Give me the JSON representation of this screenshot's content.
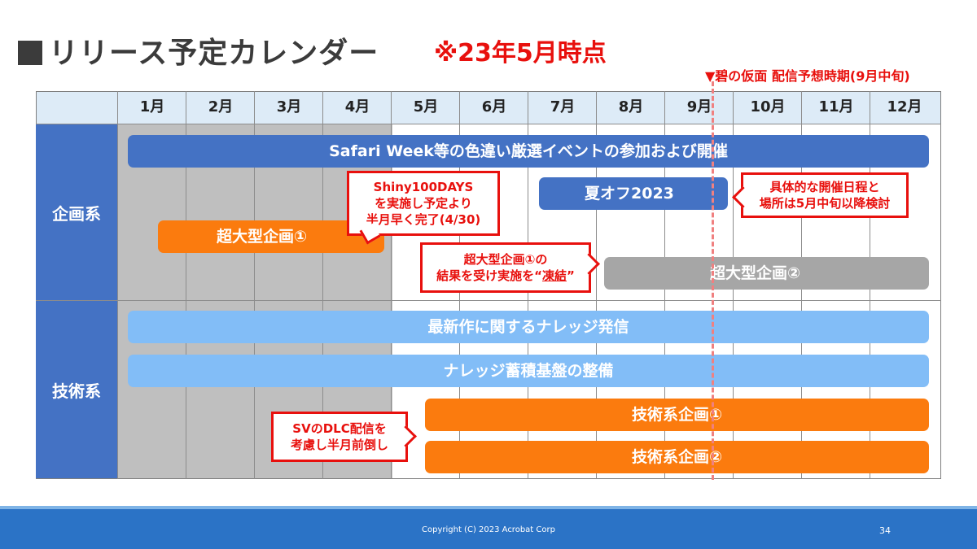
{
  "title": "■リリース予定カレンダー",
  "title_text": "リリース予定カレンダー",
  "as_of": "※23年5月時点",
  "marker_label": "▼碧の仮面 配信予想時期(9月中旬)",
  "months": [
    "1月",
    "2月",
    "3月",
    "4月",
    "5月",
    "6月",
    "7月",
    "8月",
    "9月",
    "10月",
    "11月",
    "12月"
  ],
  "categories": {
    "planning": "企画系",
    "technical": "技術系"
  },
  "bars": {
    "safari": "Safari Week等の色違い厳選イベントの参加および開催",
    "summer_offline": "夏オフ2023",
    "mega1": "超大型企画①",
    "mega2": "超大型企画②",
    "knowledge_send": "最新作に関するナレッジ発信",
    "knowledge_base": "ナレッジ蓄積基盤の整備",
    "tech1": "技術系企画①",
    "tech2": "技術系企画②"
  },
  "callouts": {
    "shiny": [
      "Shiny100DAYS",
      "を実施し予定より",
      "半月早く完了(4/30)"
    ],
    "offline": [
      "具体的な開催日程と",
      "場所は5月中旬以降検討"
    ],
    "freeze_line1": "超大型企画①の",
    "freeze_line2_pre": "結果を受け実施を“",
    "freeze_line2_em": "凍結",
    "freeze_line2_post": "”",
    "dlc": [
      "SVのDLC配信を",
      "考慮し半月前倒し"
    ]
  },
  "footer": {
    "copyright": "Copyright (C) 2023 Acrobat Corp",
    "page": "34"
  },
  "colors": {
    "category": "#4472c4",
    "orange": "#fb7b0e",
    "light_blue": "#82bdf7",
    "gray": "#a6a6a6",
    "red": "#e8100d",
    "footer": "#2b73c6"
  }
}
